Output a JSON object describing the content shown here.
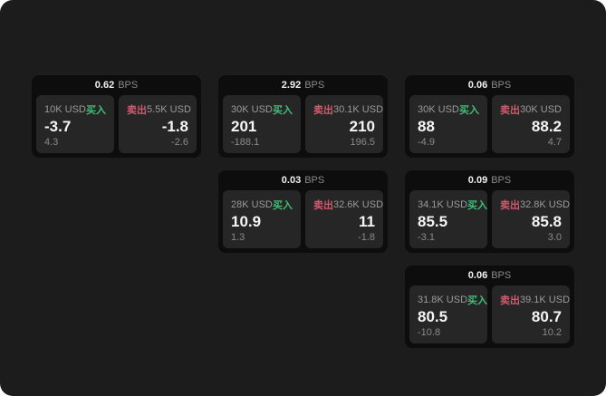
{
  "labels": {
    "bps_unit": "BPS",
    "buy": "买入",
    "sell": "卖出"
  },
  "colors": {
    "buy": "#3fbf77",
    "sell": "#d25a6e",
    "page_bg": "#1c1c1c",
    "card_bg": "#0d0d0d",
    "panel_bg": "#262626"
  },
  "cards": [
    {
      "row": 1,
      "col": 1,
      "bps": "0.62",
      "buy": {
        "amount": "10K USD",
        "price": "-3.7",
        "delta": "4.3"
      },
      "sell": {
        "amount": "5.5K USD",
        "price": "-1.8",
        "delta": "-2.6"
      }
    },
    {
      "row": 1,
      "col": 2,
      "bps": "2.92",
      "buy": {
        "amount": "30K USD",
        "price": "201",
        "delta": "-188.1"
      },
      "sell": {
        "amount": "30.1K USD",
        "price": "210",
        "delta": "196.5"
      }
    },
    {
      "row": 1,
      "col": 3,
      "bps": "0.06",
      "buy": {
        "amount": "30K USD",
        "price": "88",
        "delta": "-4.9"
      },
      "sell": {
        "amount": "30K USD",
        "price": "88.2",
        "delta": "4.7"
      }
    },
    {
      "row": 2,
      "col": 2,
      "bps": "0.03",
      "buy": {
        "amount": "28K USD",
        "price": "10.9",
        "delta": "1.3"
      },
      "sell": {
        "amount": "32.6K USD",
        "price": "11",
        "delta": "-1.8"
      }
    },
    {
      "row": 2,
      "col": 3,
      "bps": "0.09",
      "buy": {
        "amount": "34.1K USD",
        "price": "85.5",
        "delta": "-3.1"
      },
      "sell": {
        "amount": "32.8K USD",
        "price": "85.8",
        "delta": "3.0"
      }
    },
    {
      "row": 3,
      "col": 3,
      "bps": "0.06",
      "buy": {
        "amount": "31.8K USD",
        "price": "80.5",
        "delta": "-10.8"
      },
      "sell": {
        "amount": "39.1K USD",
        "price": "80.7",
        "delta": "10.2"
      }
    }
  ]
}
